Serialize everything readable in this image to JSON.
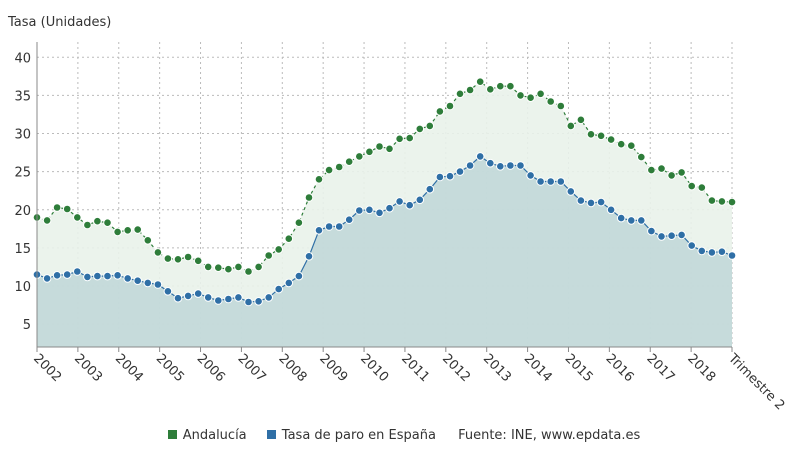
{
  "chart_data": {
    "type": "area",
    "ylabel": "Tasa (Unidades)",
    "xlabel": "",
    "ylim": [
      2,
      42
    ],
    "yticks": [
      5,
      10,
      15,
      20,
      25,
      30,
      35,
      40
    ],
    "x_tick_labels": [
      "2002",
      "2003",
      "2004",
      "2005",
      "2006",
      "2007",
      "2008",
      "2009",
      "2010",
      "2011",
      "2012",
      "2013",
      "2014",
      "2015",
      "2016",
      "2017",
      "2018",
      "Trimestre 2"
    ],
    "grid": true,
    "legend_placement": "bottom-center",
    "source_text": "Fuente: INE, www.epdata.es",
    "series": [
      {
        "name": "Andalucía",
        "color": "#2e7d3a",
        "values": [
          19.0,
          18.6,
          20.3,
          20.1,
          19.0,
          18.0,
          18.5,
          18.3,
          17.1,
          17.3,
          17.4,
          16.0,
          14.4,
          13.6,
          13.5,
          13.8,
          13.3,
          12.5,
          12.4,
          12.2,
          12.5,
          11.9,
          12.5,
          14.0,
          14.8,
          16.2,
          18.3,
          21.6,
          24.0,
          25.2,
          25.6,
          26.3,
          27.0,
          27.6,
          28.3,
          28.0,
          29.3,
          29.4,
          30.6,
          31.0,
          32.9,
          33.6,
          35.2,
          35.7,
          36.8,
          35.8,
          36.2,
          36.2,
          35.0,
          34.7,
          35.2,
          34.2,
          33.6,
          31.0,
          31.8,
          29.9,
          29.7,
          29.2,
          28.6,
          28.4,
          26.9,
          25.2,
          25.4,
          24.5,
          24.9,
          23.1,
          22.9,
          21.2,
          21.1,
          21.0
        ]
      },
      {
        "name": "Tasa de paro en España",
        "color": "#2f6fa6",
        "values": [
          11.5,
          11.0,
          11.4,
          11.5,
          11.9,
          11.2,
          11.3,
          11.3,
          11.4,
          11.0,
          10.7,
          10.4,
          10.2,
          9.3,
          8.4,
          8.7,
          9.0,
          8.5,
          8.1,
          8.3,
          8.5,
          7.9,
          8.0,
          8.5,
          9.6,
          10.4,
          11.3,
          13.9,
          17.3,
          17.8,
          17.8,
          18.7,
          19.9,
          20.0,
          19.6,
          20.2,
          21.1,
          20.6,
          21.3,
          22.7,
          24.3,
          24.4,
          25.0,
          25.8,
          27.0,
          26.1,
          25.7,
          25.8,
          25.8,
          24.5,
          23.7,
          23.7,
          23.7,
          22.4,
          21.2,
          20.9,
          21.0,
          20.0,
          18.9,
          18.6,
          18.6,
          17.2,
          16.5,
          16.6,
          16.7,
          15.3,
          14.6,
          14.4,
          14.5,
          14.0
        ]
      }
    ]
  }
}
